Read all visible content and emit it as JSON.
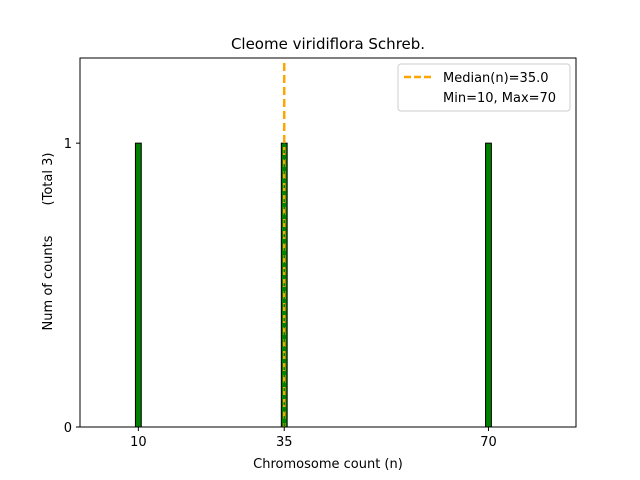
{
  "chart_data": {
    "type": "bar",
    "title": "Cleome viridiflora Schreb.",
    "xlabel": "Chromosome count (n)",
    "ylabel": "Num of counts",
    "ylabel_total": "(Total 3)",
    "x": [
      10,
      35,
      70
    ],
    "values": [
      1,
      1,
      1
    ],
    "x_ticks": [
      10,
      35,
      70
    ],
    "y_ticks": [
      0,
      1
    ],
    "xlim": [
      0,
      85
    ],
    "ylim": [
      0,
      1.3
    ],
    "bar_width": 1,
    "median": 35.0,
    "legend": {
      "placement": "top-right",
      "median_label": "Median(n)=35.0",
      "range_label": "Min=10, Max=70"
    },
    "colors": {
      "bar_fill": "#008000",
      "bar_edge": "#000000",
      "median_line": "#ffa500",
      "median_inner": "#008000"
    },
    "grid": false
  }
}
